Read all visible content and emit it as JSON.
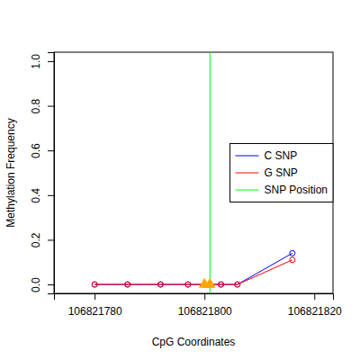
{
  "chart_data": {
    "type": "line",
    "x_label": "CpG Coordinates",
    "y_label": "Methylation Frequency",
    "x": [
      106821780,
      106821786,
      106821792,
      106821797,
      106821803,
      106821806,
      106821816
    ],
    "series": [
      {
        "name": "C SNP",
        "color": "#0000ff",
        "marker": "circle",
        "values": [
          0,
          0,
          0,
          0,
          0,
          0,
          0.14
        ]
      },
      {
        "name": "G SNP",
        "color": "#ff0000",
        "marker": "circle",
        "values": [
          0,
          0,
          0,
          0,
          0,
          0,
          0.11
        ]
      },
      {
        "name": "SNP Position",
        "color": "#00ff00",
        "type": "vline",
        "x": [
          106821801
        ]
      }
    ],
    "snp_markers": {
      "x": [
        106821800,
        106821801
      ],
      "values": [
        0,
        0
      ],
      "color": "#ffa500",
      "marker": "triangle"
    },
    "xlim": [
      106821772.6,
      106821823.4
    ],
    "ylim": [
      -0.04,
      1.04
    ],
    "xticks": [
      106821780,
      106821800,
      106821820
    ],
    "yticks": [
      {
        "value": 0,
        "label": "0.0"
      },
      0.2,
      0.4,
      0.6,
      0.8,
      {
        "value": 1,
        "label": "1.0"
      }
    ],
    "legend": "right"
  }
}
